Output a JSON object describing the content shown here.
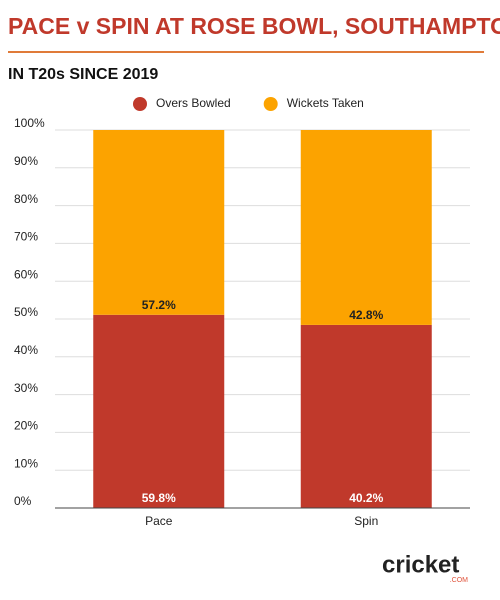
{
  "chart_data": {
    "type": "bar",
    "stacking": "percent",
    "title": "PACE v SPIN AT ROSE BOWL, SOUTHAMPTON",
    "subtitle": "IN T20s SINCE 2019",
    "categories": [
      "Pace",
      "Spin"
    ],
    "series": [
      {
        "name": "Overs Bowled",
        "color": "#c0392b",
        "values": [
          59.8,
          40.2
        ],
        "value_labels": [
          "59.8%",
          "40.2%"
        ]
      },
      {
        "name": "Wickets Taken",
        "color": "#fca300",
        "values": [
          57.2,
          42.8
        ],
        "value_labels": [
          "57.2%",
          "42.8%"
        ]
      }
    ],
    "ylim": [
      0,
      100
    ],
    "yticks": [
      {
        "value": 0,
        "label": "0%"
      },
      {
        "value": 10,
        "label": "10%"
      },
      {
        "value": 20,
        "label": "20%"
      },
      {
        "value": 30,
        "label": "30%"
      },
      {
        "value": 40,
        "label": "40%"
      },
      {
        "value": 50,
        "label": "50%"
      },
      {
        "value": 60,
        "label": "60%"
      },
      {
        "value": 70,
        "label": "70%"
      },
      {
        "value": 80,
        "label": "80%"
      },
      {
        "value": 90,
        "label": "90%"
      },
      {
        "value": 100,
        "label": "100%"
      }
    ],
    "grid": true,
    "legend": "top",
    "logo": "cricket",
    "logo_sub": ".COM"
  }
}
